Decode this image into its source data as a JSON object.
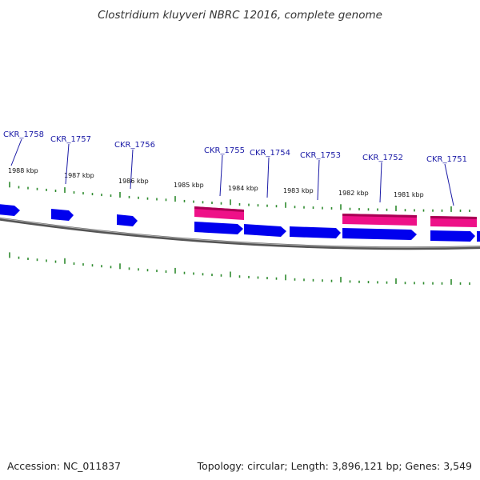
{
  "title": "Clostridium kluyveri NBRC 12016, complete genome",
  "footer": {
    "accession": "Accession: NC_011837",
    "topology": "Topology: circular; Length: 3,896,121 bp; Genes: 3,549"
  },
  "colors": {
    "forward_gene": "#0000ee",
    "rna_gene": "#ee1188",
    "backbone": "#777777",
    "ticks": "#2e8b2e",
    "labels": "#1a1aa6"
  },
  "kbp_labels": [
    "1988 kbp",
    "1987 kbp",
    "1986 kbp",
    "1985 kbp",
    "1984 kbp",
    "1983 kbp",
    "1982 kbp",
    "1981 kbp"
  ],
  "gene_labels": [
    "CKR_1758",
    "CKR_1757",
    "CKR_1756",
    "CKR_1755",
    "CKR_1754",
    "CKR_1753",
    "CKR_1752",
    "CKR_1751"
  ]
}
